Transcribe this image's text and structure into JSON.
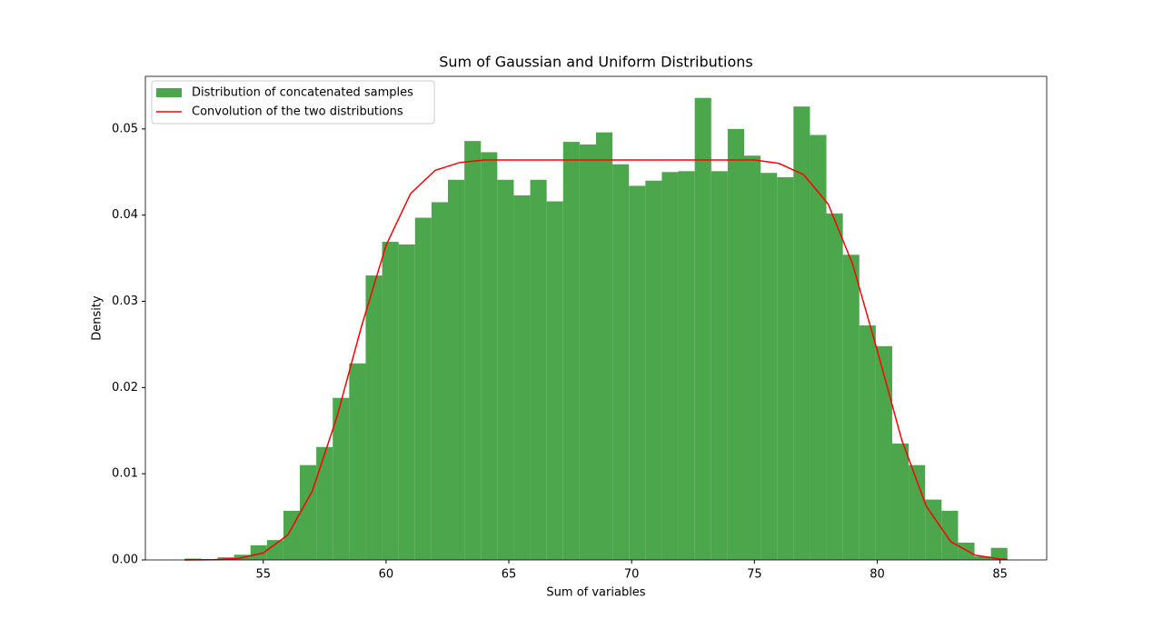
{
  "chart_data": {
    "type": "histogram",
    "title": "Sum of Gaussian and Uniform Distributions",
    "xlabel": "Sum of variables",
    "ylabel": "Density",
    "xlim": [
      50.2,
      86.9
    ],
    "ylim": [
      0,
      0.0561
    ],
    "xticks": [
      55,
      60,
      65,
      70,
      75,
      80,
      85
    ],
    "yticks": [
      {
        "value": 0,
        "label": "0.00"
      },
      {
        "value": 0.01,
        "label": "0.01"
      },
      {
        "value": 0.02,
        "label": "0.02"
      },
      {
        "value": 0.03,
        "label": "0.03"
      },
      {
        "value": 0.04,
        "label": "0.04"
      },
      {
        "value": 0.05,
        "label": "0.05"
      }
    ],
    "legend": "upper left",
    "bins": [
      51.8,
      52.47,
      53.14,
      53.81,
      54.48,
      55.15,
      55.82,
      56.49,
      57.16,
      57.83,
      58.5,
      59.17,
      59.84,
      60.51,
      61.18,
      61.85,
      62.52,
      63.19,
      63.86,
      64.53,
      65.2,
      65.87,
      66.54,
      67.21,
      67.88,
      68.55,
      69.22,
      69.89,
      70.56,
      71.23,
      71.9,
      72.57,
      73.24,
      73.91,
      74.58,
      75.25,
      75.92,
      76.59,
      77.26,
      77.93,
      78.6,
      79.27,
      79.94,
      80.61,
      81.28,
      81.95,
      82.62,
      83.29,
      83.96,
      84.63,
      85.3
    ],
    "series": [
      {
        "name": "Distribution of concatenated samples",
        "type": "histogram",
        "color": "#4ca64c",
        "values": [
          0.00015,
          0.0001,
          0.0003,
          0.0006,
          0.0017,
          0.0023,
          0.0057,
          0.011,
          0.0131,
          0.0188,
          0.0228,
          0.033,
          0.0369,
          0.0366,
          0.0397,
          0.0415,
          0.0441,
          0.0486,
          0.0473,
          0.0441,
          0.0423,
          0.0441,
          0.0416,
          0.0485,
          0.0482,
          0.0496,
          0.0459,
          0.0434,
          0.044,
          0.045,
          0.0451,
          0.0536,
          0.0451,
          0.05,
          0.0469,
          0.0449,
          0.0444,
          0.0526,
          0.0493,
          0.0402,
          0.0354,
          0.0272,
          0.0248,
          0.0135,
          0.011,
          0.007,
          0.0057,
          0.002,
          0.0004,
          0.0014
        ]
      },
      {
        "name": "Convolution of the two distributions",
        "type": "line",
        "color": "#ff0000",
        "x": [
          51.8,
          53,
          54,
          55,
          56,
          57,
          58,
          59,
          60,
          61,
          62,
          63,
          64,
          65,
          66,
          67,
          68,
          69,
          70,
          71,
          72,
          73,
          74,
          75,
          76,
          77,
          78,
          79,
          80,
          81,
          82,
          83,
          84,
          85,
          85.3
        ],
        "values": [
          0.0,
          2e-05,
          0.00017,
          0.0008,
          0.0029,
          0.008,
          0.0166,
          0.0271,
          0.0365,
          0.0425,
          0.0452,
          0.0461,
          0.0464,
          0.0464,
          0.0464,
          0.0464,
          0.0464,
          0.0464,
          0.0464,
          0.0464,
          0.0464,
          0.0464,
          0.0464,
          0.0464,
          0.046,
          0.0447,
          0.0413,
          0.0343,
          0.0243,
          0.0139,
          0.0062,
          0.0021,
          0.00054,
          0.0001,
          6e-05
        ]
      }
    ]
  }
}
